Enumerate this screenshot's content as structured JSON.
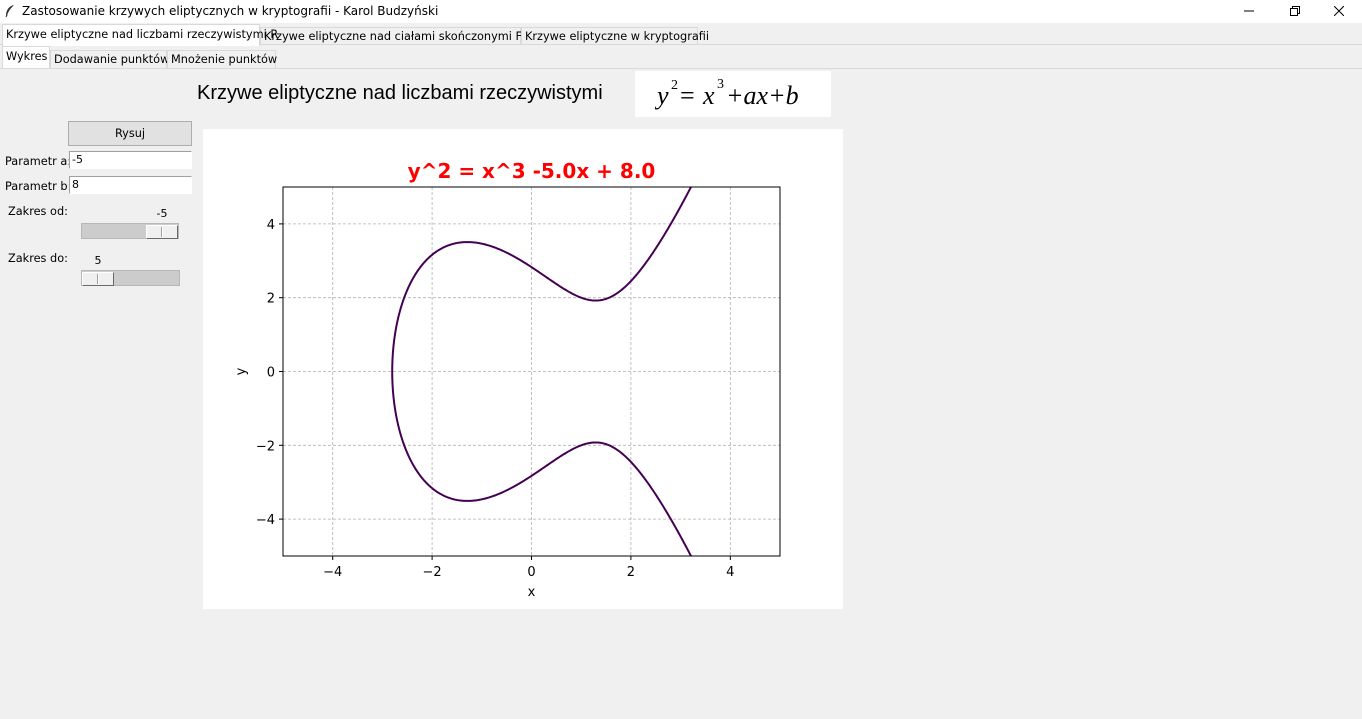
{
  "window": {
    "title": "Zastosowanie krzywych eliptycznych w kryptografii - Karol Budzyński",
    "icon": "feather-icon",
    "controls": [
      "minimize-icon",
      "restore-icon",
      "close-icon"
    ]
  },
  "main_tabs": [
    {
      "label": "Krzywe eliptyczne nad liczbami rzeczywistymi R",
      "active": true
    },
    {
      "label": "Krzywe eliptyczne nad ciałami skończonymi F(p)",
      "active": false
    },
    {
      "label": "Krzywe eliptyczne w kryptografii",
      "active": false
    }
  ],
  "sub_tabs": [
    {
      "label": "Wykres",
      "active": true
    },
    {
      "label": "Dodawanie punktów",
      "active": false
    },
    {
      "label": "Mnożenie punktów",
      "active": false
    }
  ],
  "header": {
    "title": "Krzywe eliptyczne nad liczbami rzeczywistymi",
    "formula": {
      "y": "y",
      "exp2": "2",
      "eq": "=",
      "x": "x",
      "exp3": "3",
      "rest": "+ax+b"
    }
  },
  "controls": {
    "draw_button": "Rysuj",
    "param_a_label": "Parametr a:",
    "param_a_value": "-5",
    "param_b_label": "Parametr b:",
    "param_b_value": "8",
    "range_from_label": "Zakres od:",
    "range_from_value": "-5",
    "range_to_label": "Zakres do:",
    "range_to_value": "5",
    "slider_min": -5,
    "slider_max": 5
  },
  "chart_data": {
    "type": "line",
    "title": "y^2 = x^3 -5.0x + 8.0",
    "title_color": "#ff0000",
    "xlabel": "x",
    "ylabel": "y",
    "xlim": [
      -5,
      5
    ],
    "ylim": [
      -5,
      5
    ],
    "xticks": [
      -4,
      -2,
      0,
      2,
      4
    ],
    "yticks": [
      -4,
      -2,
      0,
      2,
      4
    ],
    "xtick_labels": [
      "−4",
      "−2",
      "0",
      "2",
      "4"
    ],
    "ytick_labels": [
      "−4",
      "−2",
      "0",
      "2",
      "4"
    ],
    "grid": true,
    "grid_style": "dashed",
    "curve_color": "#440154",
    "series": [
      {
        "equation": "y^2 = x^3 + a*x + b",
        "a": -5.0,
        "b": 8.0
      }
    ]
  }
}
